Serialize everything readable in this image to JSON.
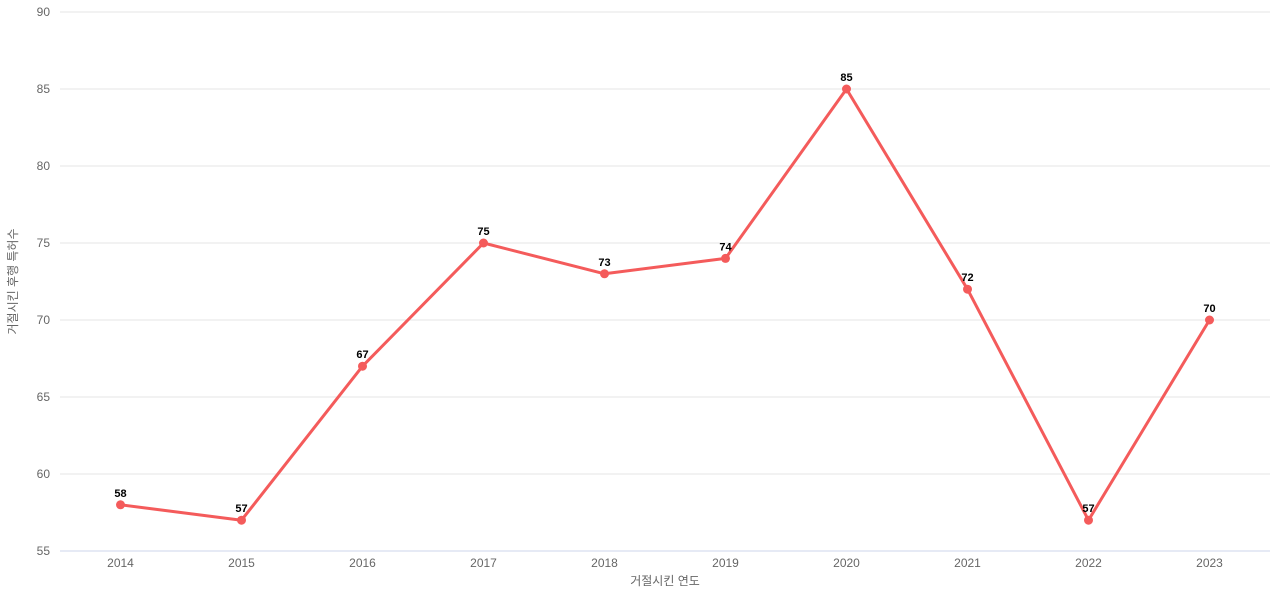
{
  "chart_data": {
    "type": "line",
    "title": "",
    "categories": [
      "2014",
      "2015",
      "2016",
      "2017",
      "2018",
      "2019",
      "2020",
      "2021",
      "2022",
      "2023"
    ],
    "values": [
      58,
      57,
      67,
      75,
      73,
      74,
      85,
      72,
      57,
      70
    ],
    "xlabel": "거절시킨 연도",
    "ylabel": "거절시킨 후행 특허수",
    "ylim": [
      55,
      90
    ],
    "yticks": [
      55,
      60,
      65,
      70,
      75,
      80,
      85,
      90
    ],
    "grid": "horizontal",
    "legend": "none",
    "data_labels_visible": true,
    "colors": {
      "line": "#f45b5b",
      "marker": "#f45b5b",
      "grid": "#e6e6e6",
      "axis_line": "#ccd6eb",
      "tick_label": "#666666",
      "axis_title": "#666666",
      "data_label": "#000000",
      "background": "#ffffff"
    }
  }
}
